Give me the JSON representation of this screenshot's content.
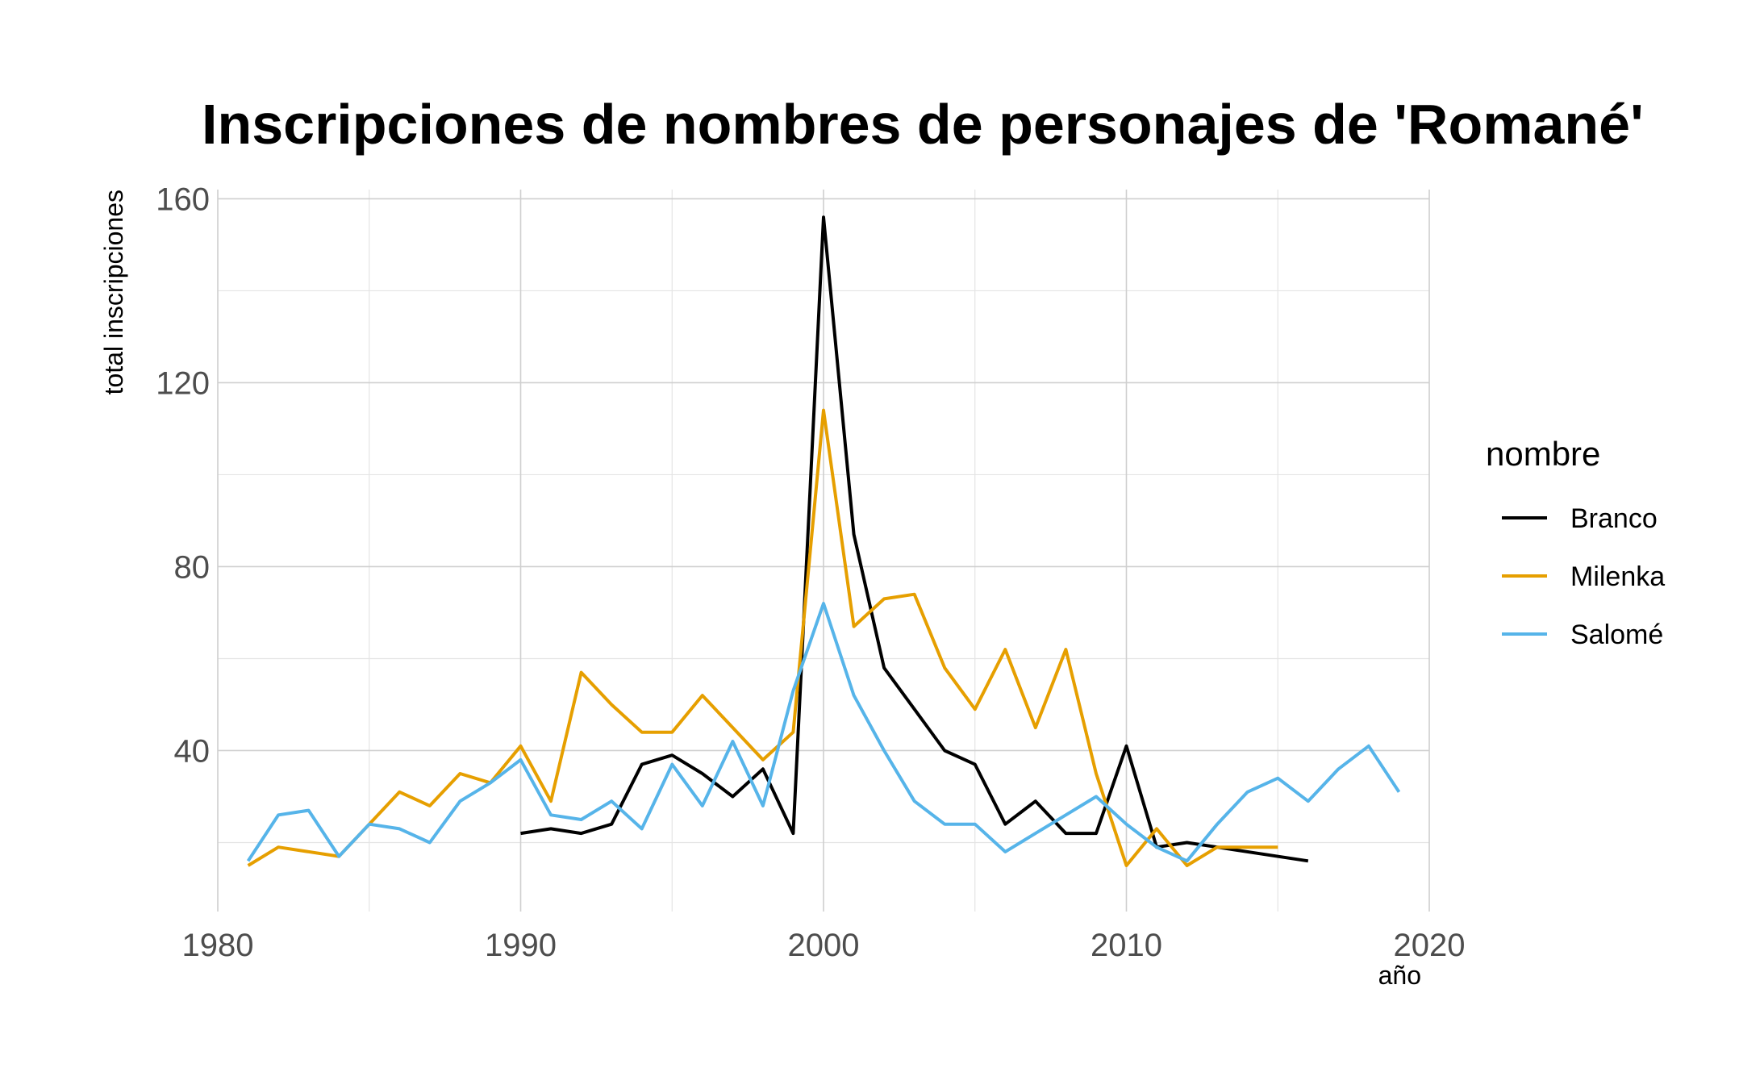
{
  "chart_data": {
    "type": "line",
    "title": "Inscripciones de nombres de personajes de 'Romané'",
    "xlabel": "año",
    "ylabel": "total inscripciones",
    "xlim": [
      1980,
      2020
    ],
    "ylim": [
      5,
      162
    ],
    "x_ticks": [
      1980,
      1990,
      2000,
      2010,
      2020
    ],
    "x_tick_labels": [
      "1980",
      "1990",
      "2000",
      "2010",
      "2020"
    ],
    "y_ticks": [
      40,
      80,
      120,
      160
    ],
    "y_tick_labels": [
      "40",
      "80",
      "120",
      "160"
    ],
    "grid": true,
    "legend": {
      "title": "nombre",
      "placement": "right"
    },
    "series": [
      {
        "name": "Branco",
        "color": "#000000",
        "points": [
          [
            1990,
            22
          ],
          [
            1991,
            23
          ],
          [
            1992,
            22
          ],
          [
            1993,
            24
          ],
          [
            1994,
            37
          ],
          [
            1995,
            39
          ],
          [
            1996,
            35
          ],
          [
            1997,
            30
          ],
          [
            1998,
            36
          ],
          [
            1999,
            22
          ],
          [
            2000,
            156
          ],
          [
            2001,
            87
          ],
          [
            2002,
            58
          ],
          [
            2003,
            49
          ],
          [
            2004,
            40
          ],
          [
            2005,
            37
          ],
          [
            2006,
            24
          ],
          [
            2007,
            29
          ],
          [
            2008,
            22
          ],
          [
            2009,
            22
          ],
          [
            2010,
            41
          ],
          [
            2011,
            19
          ],
          [
            2012,
            20
          ],
          [
            2013,
            19
          ],
          [
            2016,
            16
          ]
        ]
      },
      {
        "name": "Milenka",
        "color": "#E69F00",
        "points": [
          [
            1981,
            15
          ],
          [
            1982,
            19
          ],
          [
            1984,
            17
          ],
          [
            1985,
            24
          ],
          [
            1986,
            31
          ],
          [
            1987,
            28
          ],
          [
            1988,
            35
          ],
          [
            1989,
            33
          ],
          [
            1990,
            41
          ],
          [
            1991,
            29
          ],
          [
            1992,
            57
          ],
          [
            1993,
            50
          ],
          [
            1994,
            44
          ],
          [
            1995,
            44
          ],
          [
            1996,
            52
          ],
          [
            1997,
            45
          ],
          [
            1998,
            38
          ],
          [
            1999,
            44
          ],
          [
            2000,
            114
          ],
          [
            2001,
            67
          ],
          [
            2002,
            73
          ],
          [
            2003,
            74
          ],
          [
            2004,
            58
          ],
          [
            2005,
            49
          ],
          [
            2006,
            62
          ],
          [
            2007,
            45
          ],
          [
            2008,
            62
          ],
          [
            2009,
            35
          ],
          [
            2010,
            15
          ],
          [
            2011,
            23
          ],
          [
            2012,
            15
          ],
          [
            2013,
            19
          ],
          [
            2015,
            19
          ]
        ]
      },
      {
        "name": "Salomé",
        "color": "#56B4E9",
        "points": [
          [
            1981,
            16
          ],
          [
            1982,
            26
          ],
          [
            1983,
            27
          ],
          [
            1984,
            17
          ],
          [
            1985,
            24
          ],
          [
            1986,
            23
          ],
          [
            1987,
            20
          ],
          [
            1988,
            29
          ],
          [
            1989,
            33
          ],
          [
            1990,
            38
          ],
          [
            1991,
            26
          ],
          [
            1992,
            25
          ],
          [
            1993,
            29
          ],
          [
            1994,
            23
          ],
          [
            1995,
            37
          ],
          [
            1996,
            28
          ],
          [
            1997,
            42
          ],
          [
            1998,
            28
          ],
          [
            1999,
            53
          ],
          [
            2000,
            72
          ],
          [
            2001,
            52
          ],
          [
            2002,
            40
          ],
          [
            2003,
            29
          ],
          [
            2004,
            24
          ],
          [
            2005,
            24
          ],
          [
            2006,
            18
          ],
          [
            2007,
            22
          ],
          [
            2008,
            26
          ],
          [
            2009,
            30
          ],
          [
            2010,
            24
          ],
          [
            2011,
            19
          ],
          [
            2012,
            16
          ],
          [
            2013,
            24
          ],
          [
            2014,
            31
          ],
          [
            2015,
            34
          ],
          [
            2016,
            29
          ],
          [
            2017,
            36
          ],
          [
            2018,
            41
          ],
          [
            2019,
            31
          ]
        ]
      }
    ]
  }
}
